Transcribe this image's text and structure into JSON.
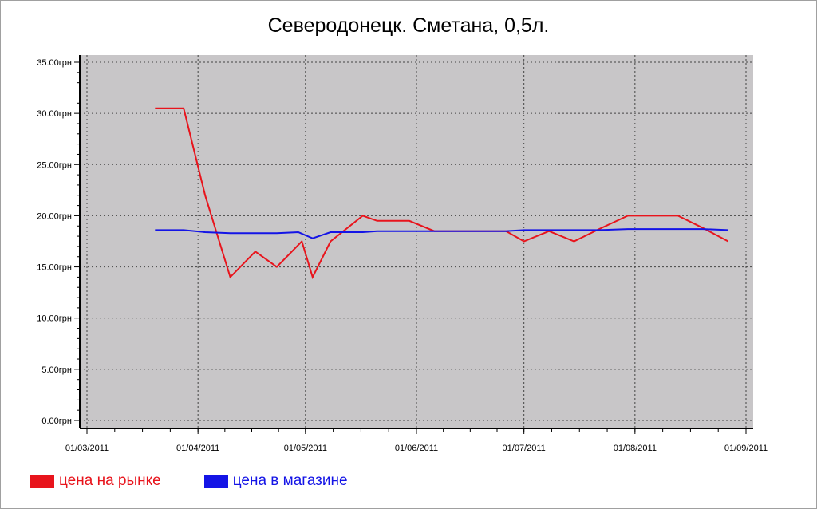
{
  "chart_data": {
    "type": "line",
    "title": "Северодонецк. Сметана, 0,5л.",
    "xlabel": "",
    "ylabel": "",
    "xlim": [
      "2011-03-01",
      "2011-09-01"
    ],
    "ylim": [
      0,
      35
    ],
    "x_ticks": [
      "01/03/2011",
      "01/04/2011",
      "01/05/2011",
      "01/06/2011",
      "01/07/2011",
      "01/08/2011",
      "01/09/2011"
    ],
    "x_tick_dates": [
      "2011-03-01",
      "2011-04-01",
      "2011-05-01",
      "2011-06-01",
      "2011-07-01",
      "2011-08-01",
      "2011-09-01"
    ],
    "y_ticks": [
      "0.00грн",
      "5.00грн",
      "10.00грн",
      "15.00грн",
      "20.00грн",
      "25.00грн",
      "30.00грн",
      "35.00грн"
    ],
    "y_tick_values": [
      0,
      5,
      10,
      15,
      20,
      25,
      30,
      35
    ],
    "grid": true,
    "background": "#c8c6c8",
    "legend_position": "bottom-left",
    "series": [
      {
        "name": "цена на рынке",
        "color": "#e8141c",
        "x": [
          "2011-03-20",
          "2011-03-28",
          "2011-04-03",
          "2011-04-10",
          "2011-04-17",
          "2011-04-23",
          "2011-04-30",
          "2011-05-03",
          "2011-05-08",
          "2011-05-17",
          "2011-05-21",
          "2011-05-30",
          "2011-06-06",
          "2011-06-12",
          "2011-06-20",
          "2011-06-26",
          "2011-07-01",
          "2011-07-08",
          "2011-07-15",
          "2011-07-22",
          "2011-07-30",
          "2011-08-05",
          "2011-08-13",
          "2011-08-20",
          "2011-08-27"
        ],
        "y": [
          30.5,
          30.5,
          22.0,
          14.0,
          16.5,
          15.0,
          17.5,
          14.0,
          17.5,
          20.0,
          19.5,
          19.5,
          18.5,
          18.5,
          18.5,
          18.5,
          17.5,
          18.5,
          17.5,
          18.7,
          20.0,
          20.0,
          20.0,
          18.8,
          17.5
        ]
      },
      {
        "name": "цена в магазине",
        "color": "#1414e6",
        "x": [
          "2011-03-20",
          "2011-03-28",
          "2011-04-03",
          "2011-04-10",
          "2011-04-17",
          "2011-04-23",
          "2011-04-29",
          "2011-05-03",
          "2011-05-08",
          "2011-05-17",
          "2011-05-21",
          "2011-05-30",
          "2011-06-06",
          "2011-06-12",
          "2011-06-20",
          "2011-06-26",
          "2011-07-01",
          "2011-07-08",
          "2011-07-15",
          "2011-07-22",
          "2011-07-30",
          "2011-08-05",
          "2011-08-13",
          "2011-08-20",
          "2011-08-27"
        ],
        "y": [
          18.6,
          18.6,
          18.4,
          18.3,
          18.3,
          18.3,
          18.4,
          17.8,
          18.4,
          18.4,
          18.5,
          18.5,
          18.5,
          18.5,
          18.5,
          18.5,
          18.6,
          18.6,
          18.6,
          18.6,
          18.7,
          18.7,
          18.7,
          18.7,
          18.6
        ]
      }
    ]
  }
}
